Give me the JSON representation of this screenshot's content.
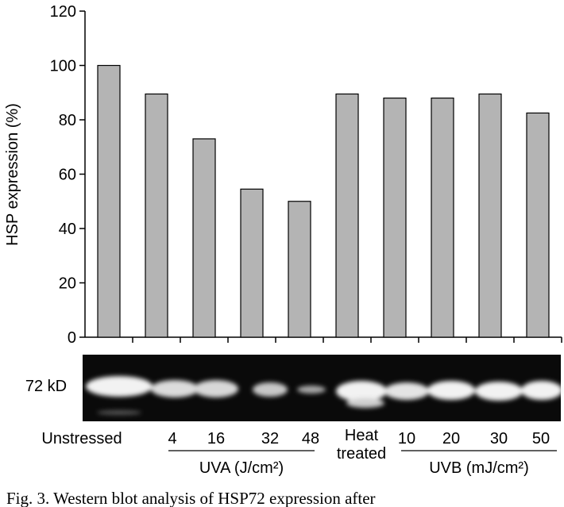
{
  "chart_data": {
    "type": "bar",
    "y_label": "HSP expression (%)",
    "categories": [
      "Unstressed",
      "4",
      "16",
      "32",
      "48",
      "Heat treated",
      "10",
      "20",
      "30",
      "50"
    ],
    "values": [
      100,
      89.5,
      73,
      54.5,
      50,
      89.5,
      88,
      88,
      89.5,
      82.5
    ],
    "color": "#b4b4b4",
    "ylim": [
      0,
      120
    ],
    "yticks": [
      0,
      20,
      40,
      60,
      80,
      100,
      120
    ],
    "groups": [
      {
        "label": "UVA (J/cm²)"
      },
      {
        "label": "UVB (mJ/cm²)"
      }
    ],
    "blot_label": "72 kD"
  },
  "caption": "Fig. 3. Western blot analysis of HSP72 expression after"
}
